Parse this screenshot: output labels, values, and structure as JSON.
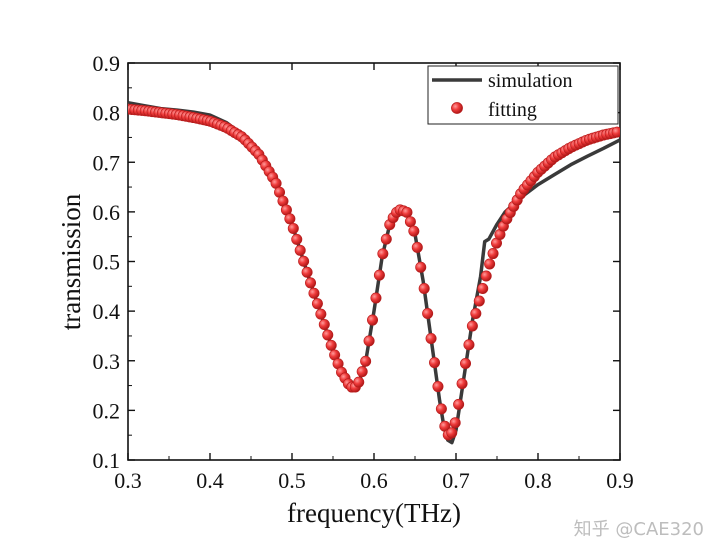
{
  "chart_data": {
    "type": "line",
    "title": "",
    "xlabel": "frequency(THz)",
    "ylabel": "transmission",
    "xlim": [
      0.3,
      0.9
    ],
    "ylim": [
      0.1,
      0.9
    ],
    "x_ticks": [
      "0.3",
      "0.4",
      "0.5",
      "0.6",
      "0.7",
      "0.8",
      "0.9"
    ],
    "y_ticks": [
      "0.1",
      "0.2",
      "0.3",
      "0.4",
      "0.5",
      "0.6",
      "0.7",
      "0.8",
      "0.9"
    ],
    "grid": false,
    "legend_position": "top-right",
    "series": [
      {
        "name": "simulation",
        "style": "line",
        "color": "#3a3a3a",
        "x": [
          0.3,
          0.32,
          0.34,
          0.36,
          0.38,
          0.4,
          0.42,
          0.44,
          0.46,
          0.48,
          0.5,
          0.52,
          0.54,
          0.55,
          0.56,
          0.57,
          0.575,
          0.58,
          0.59,
          0.6,
          0.61,
          0.62,
          0.63,
          0.64,
          0.65,
          0.66,
          0.67,
          0.68,
          0.685,
          0.69,
          0.695,
          0.7,
          0.71,
          0.72,
          0.73,
          0.735,
          0.74,
          0.75,
          0.76,
          0.78,
          0.8,
          0.82,
          0.84,
          0.86,
          0.88,
          0.9
        ],
        "y": [
          0.82,
          0.814,
          0.808,
          0.805,
          0.801,
          0.795,
          0.78,
          0.755,
          0.72,
          0.665,
          0.575,
          0.47,
          0.37,
          0.32,
          0.275,
          0.245,
          0.242,
          0.248,
          0.3,
          0.4,
          0.51,
          0.58,
          0.605,
          0.6,
          0.555,
          0.46,
          0.34,
          0.22,
          0.17,
          0.14,
          0.135,
          0.16,
          0.27,
          0.38,
          0.47,
          0.54,
          0.545,
          0.575,
          0.6,
          0.63,
          0.655,
          0.675,
          0.695,
          0.712,
          0.728,
          0.745
        ]
      },
      {
        "name": "fitting",
        "style": "markers",
        "color": "#e53935",
        "x": [
          0.3,
          0.32,
          0.34,
          0.36,
          0.38,
          0.4,
          0.42,
          0.44,
          0.46,
          0.48,
          0.5,
          0.52,
          0.54,
          0.55,
          0.56,
          0.57,
          0.575,
          0.58,
          0.59,
          0.6,
          0.61,
          0.62,
          0.63,
          0.64,
          0.65,
          0.66,
          0.67,
          0.68,
          0.685,
          0.69,
          0.695,
          0.7,
          0.71,
          0.72,
          0.73,
          0.74,
          0.75,
          0.76,
          0.78,
          0.8,
          0.82,
          0.84,
          0.86,
          0.88,
          0.9
        ],
        "y": [
          0.807,
          0.804,
          0.8,
          0.796,
          0.79,
          0.783,
          0.77,
          0.75,
          0.715,
          0.66,
          0.575,
          0.47,
          0.37,
          0.32,
          0.278,
          0.25,
          0.245,
          0.25,
          0.3,
          0.4,
          0.51,
          0.58,
          0.605,
          0.6,
          0.555,
          0.46,
          0.34,
          0.225,
          0.175,
          0.15,
          0.155,
          0.18,
          0.28,
          0.37,
          0.43,
          0.49,
          0.54,
          0.58,
          0.64,
          0.68,
          0.71,
          0.73,
          0.745,
          0.755,
          0.762
        ]
      }
    ]
  },
  "watermark": "知乎 @CAE320"
}
